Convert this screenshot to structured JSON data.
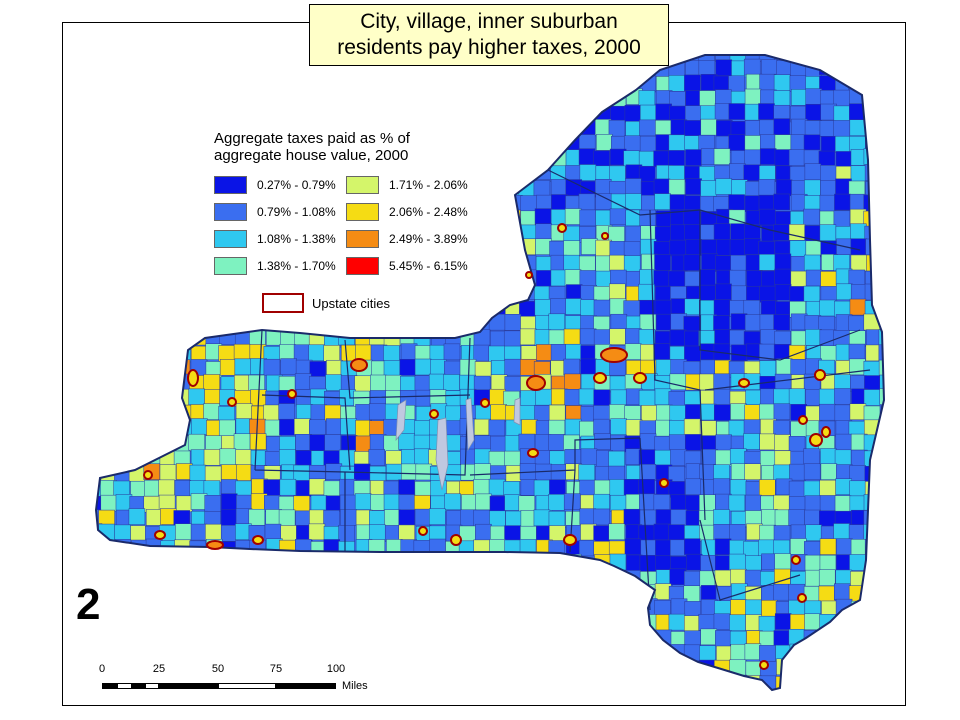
{
  "map": {
    "title": [
      "City, village, inner suburban",
      "residents pay higher taxes, 2000"
    ],
    "figure_number": "2",
    "legend": {
      "title": [
        "Aggregate taxes paid as % of",
        "aggregate house value, 2000"
      ],
      "classes": [
        {
          "label": "0.27% - 0.79%",
          "color": "#0a14e6"
        },
        {
          "label": "0.79% - 1.08%",
          "color": "#3a6ef0"
        },
        {
          "label": "1.08% - 1.38%",
          "color": "#2fc8f0"
        },
        {
          "label": "1.38% - 1.70%",
          "color": "#7ef2c0"
        },
        {
          "label": "1.71% - 2.06%",
          "color": "#d4f56a"
        },
        {
          "label": "2.06% - 2.48%",
          "color": "#f5dc14"
        },
        {
          "label": "2.49% - 3.89%",
          "color": "#f58c14"
        },
        {
          "label": "5.45% - 6.15%",
          "color": "#ff0000"
        }
      ],
      "cities_label": "Upstate cities",
      "cities_outline_color": "#a00000"
    },
    "scale": {
      "ticks": [
        "0",
        "25",
        "50",
        "75",
        "100"
      ],
      "units": "Miles"
    }
  }
}
